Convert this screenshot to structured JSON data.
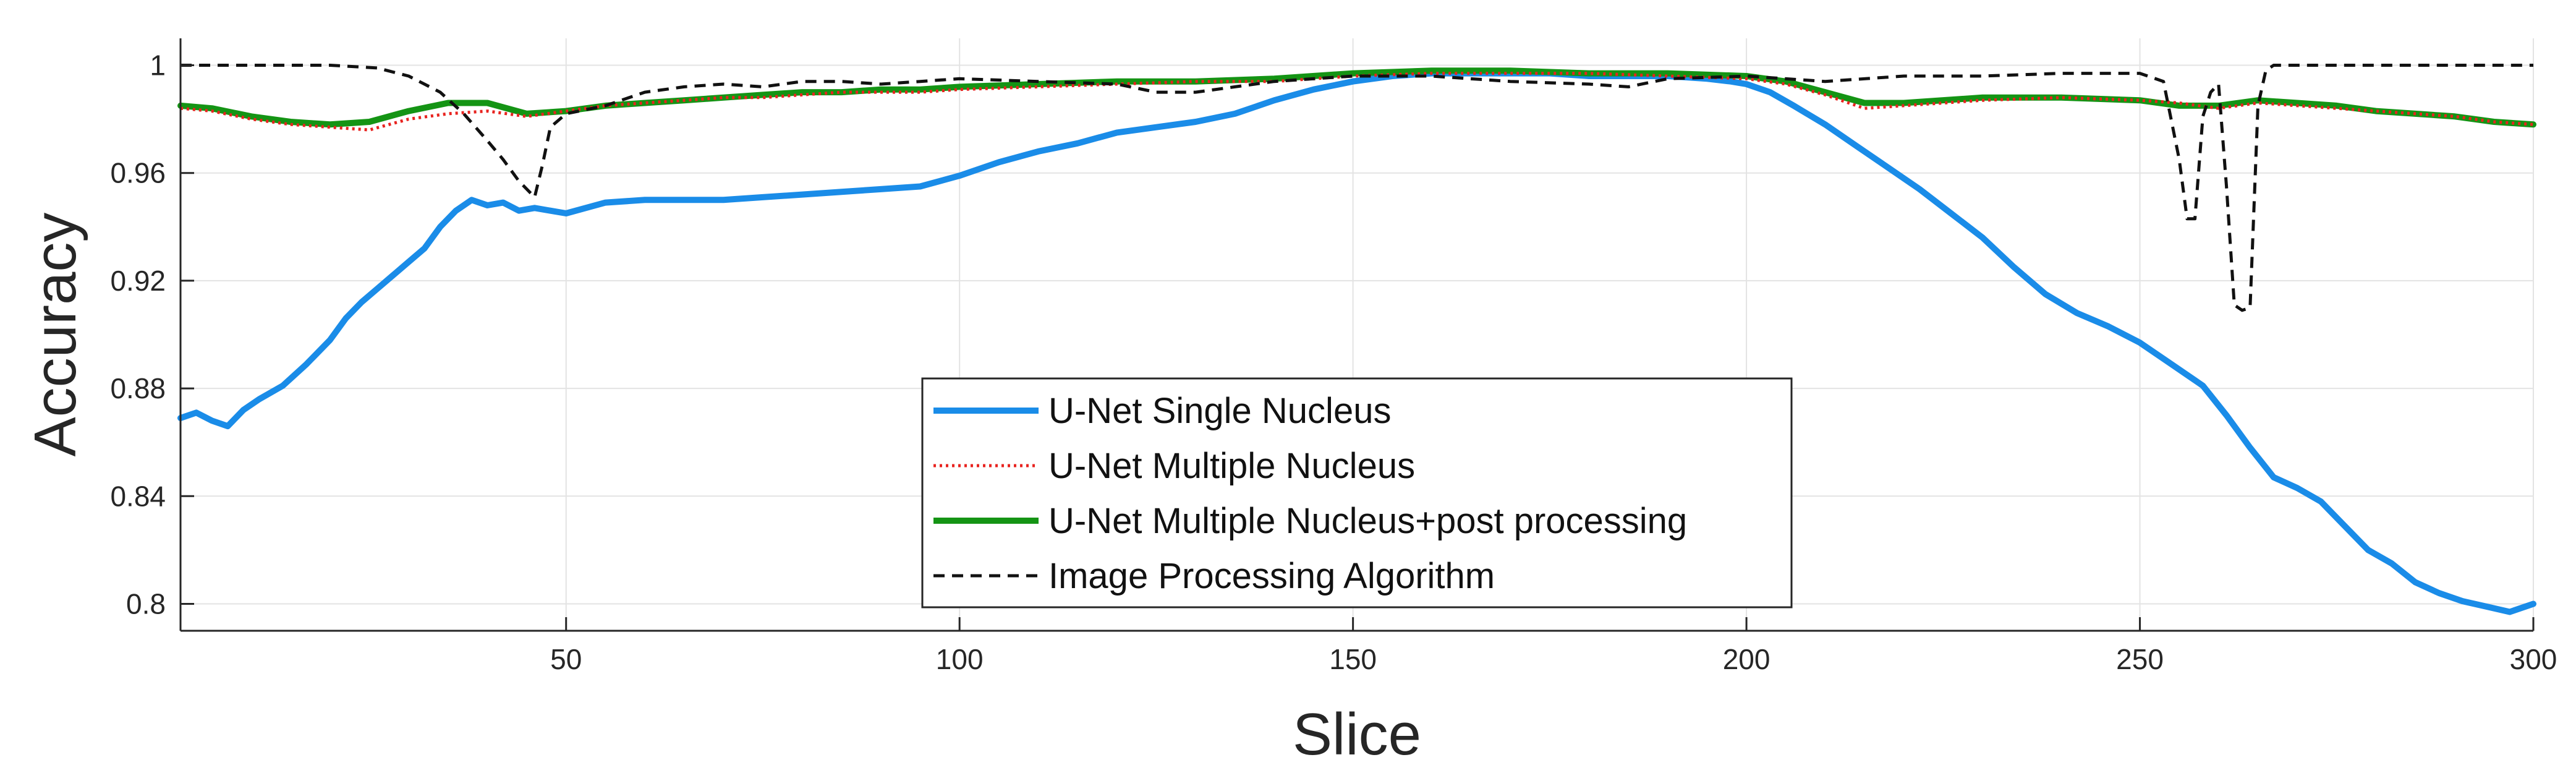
{
  "chart_data": {
    "type": "line",
    "xlabel": "Slice",
    "ylabel": "Accuracy",
    "xlim": [
      1,
      300
    ],
    "ylim": [
      0.79,
      1.01
    ],
    "xticks": [
      50,
      100,
      150,
      200,
      250,
      300
    ],
    "yticks": [
      0.8,
      0.84,
      0.88,
      0.92,
      0.96,
      1
    ],
    "ytick_labels": [
      "0.8",
      "0.84",
      "0.88",
      "0.92",
      "0.96",
      "1"
    ],
    "grid": true,
    "legend_position": "bottom-center",
    "series": [
      {
        "name": "U-Net Single Nucleus",
        "color": "#1a8ce8",
        "style": "solid-thick",
        "points": [
          [
            1,
            0.869
          ],
          [
            3,
            0.871
          ],
          [
            5,
            0.868
          ],
          [
            7,
            0.866
          ],
          [
            9,
            0.872
          ],
          [
            11,
            0.876
          ],
          [
            14,
            0.881
          ],
          [
            17,
            0.889
          ],
          [
            20,
            0.898
          ],
          [
            22,
            0.906
          ],
          [
            24,
            0.912
          ],
          [
            26,
            0.917
          ],
          [
            28,
            0.922
          ],
          [
            30,
            0.927
          ],
          [
            32,
            0.932
          ],
          [
            34,
            0.94
          ],
          [
            36,
            0.946
          ],
          [
            38,
            0.95
          ],
          [
            40,
            0.948
          ],
          [
            42,
            0.949
          ],
          [
            44,
            0.946
          ],
          [
            46,
            0.947
          ],
          [
            48,
            0.946
          ],
          [
            50,
            0.945
          ],
          [
            55,
            0.949
          ],
          [
            60,
            0.95
          ],
          [
            65,
            0.95
          ],
          [
            70,
            0.95
          ],
          [
            75,
            0.951
          ],
          [
            80,
            0.952
          ],
          [
            85,
            0.953
          ],
          [
            90,
            0.954
          ],
          [
            95,
            0.955
          ],
          [
            100,
            0.959
          ],
          [
            105,
            0.964
          ],
          [
            110,
            0.968
          ],
          [
            115,
            0.971
          ],
          [
            120,
            0.975
          ],
          [
            125,
            0.977
          ],
          [
            130,
            0.979
          ],
          [
            135,
            0.982
          ],
          [
            140,
            0.987
          ],
          [
            145,
            0.991
          ],
          [
            150,
            0.994
          ],
          [
            155,
            0.996
          ],
          [
            160,
            0.997
          ],
          [
            165,
            0.997
          ],
          [
            170,
            0.997
          ],
          [
            175,
            0.997
          ],
          [
            180,
            0.996
          ],
          [
            185,
            0.996
          ],
          [
            190,
            0.996
          ],
          [
            195,
            0.995
          ],
          [
            198,
            0.994
          ],
          [
            200,
            0.993
          ],
          [
            203,
            0.99
          ],
          [
            206,
            0.985
          ],
          [
            210,
            0.978
          ],
          [
            214,
            0.97
          ],
          [
            218,
            0.962
          ],
          [
            222,
            0.954
          ],
          [
            226,
            0.945
          ],
          [
            230,
            0.936
          ],
          [
            234,
            0.925
          ],
          [
            238,
            0.915
          ],
          [
            242,
            0.908
          ],
          [
            246,
            0.903
          ],
          [
            250,
            0.897
          ],
          [
            254,
            0.889
          ],
          [
            258,
            0.881
          ],
          [
            261,
            0.87
          ],
          [
            264,
            0.858
          ],
          [
            267,
            0.847
          ],
          [
            270,
            0.843
          ],
          [
            273,
            0.838
          ],
          [
            276,
            0.829
          ],
          [
            279,
            0.82
          ],
          [
            282,
            0.815
          ],
          [
            285,
            0.808
          ],
          [
            288,
            0.804
          ],
          [
            291,
            0.801
          ],
          [
            294,
            0.799
          ],
          [
            297,
            0.797
          ],
          [
            300,
            0.8
          ]
        ]
      },
      {
        "name": "U-Net Multiple Nucleus",
        "color": "#e8231f",
        "style": "dotted",
        "points": [
          [
            1,
            0.984
          ],
          [
            5,
            0.983
          ],
          [
            10,
            0.98
          ],
          [
            15,
            0.978
          ],
          [
            20,
            0.977
          ],
          [
            25,
            0.976
          ],
          [
            30,
            0.98
          ],
          [
            35,
            0.982
          ],
          [
            40,
            0.983
          ],
          [
            45,
            0.981
          ],
          [
            50,
            0.983
          ],
          [
            55,
            0.985
          ],
          [
            60,
            0.986
          ],
          [
            65,
            0.987
          ],
          [
            70,
            0.988
          ],
          [
            75,
            0.988
          ],
          [
            80,
            0.989
          ],
          [
            85,
            0.99
          ],
          [
            90,
            0.99
          ],
          [
            95,
            0.99
          ],
          [
            100,
            0.991
          ],
          [
            110,
            0.992
          ],
          [
            120,
            0.993
          ],
          [
            130,
            0.994
          ],
          [
            140,
            0.994
          ],
          [
            150,
            0.996
          ],
          [
            160,
            0.997
          ],
          [
            170,
            0.997
          ],
          [
            180,
            0.997
          ],
          [
            190,
            0.996
          ],
          [
            200,
            0.995
          ],
          [
            205,
            0.993
          ],
          [
            210,
            0.989
          ],
          [
            215,
            0.984
          ],
          [
            220,
            0.985
          ],
          [
            230,
            0.987
          ],
          [
            240,
            0.988
          ],
          [
            250,
            0.987
          ],
          [
            255,
            0.986
          ],
          [
            260,
            0.984
          ],
          [
            265,
            0.986
          ],
          [
            270,
            0.985
          ],
          [
            275,
            0.984
          ],
          [
            280,
            0.983
          ],
          [
            285,
            0.982
          ],
          [
            290,
            0.981
          ],
          [
            295,
            0.979
          ],
          [
            300,
            0.978
          ]
        ]
      },
      {
        "name": "U-Net Multiple Nucleus+post processing",
        "color": "#149414",
        "style": "solid-thick",
        "points": [
          [
            1,
            0.985
          ],
          [
            5,
            0.984
          ],
          [
            10,
            0.981
          ],
          [
            15,
            0.979
          ],
          [
            20,
            0.978
          ],
          [
            25,
            0.979
          ],
          [
            30,
            0.983
          ],
          [
            35,
            0.986
          ],
          [
            40,
            0.986
          ],
          [
            45,
            0.982
          ],
          [
            50,
            0.983
          ],
          [
            55,
            0.985
          ],
          [
            60,
            0.986
          ],
          [
            65,
            0.987
          ],
          [
            70,
            0.988
          ],
          [
            75,
            0.989
          ],
          [
            80,
            0.99
          ],
          [
            85,
            0.99
          ],
          [
            90,
            0.991
          ],
          [
            95,
            0.991
          ],
          [
            100,
            0.992
          ],
          [
            110,
            0.993
          ],
          [
            120,
            0.994
          ],
          [
            130,
            0.994
          ],
          [
            140,
            0.995
          ],
          [
            150,
            0.997
          ],
          [
            160,
            0.998
          ],
          [
            170,
            0.998
          ],
          [
            180,
            0.997
          ],
          [
            190,
            0.997
          ],
          [
            200,
            0.996
          ],
          [
            205,
            0.994
          ],
          [
            210,
            0.99
          ],
          [
            215,
            0.986
          ],
          [
            220,
            0.986
          ],
          [
            230,
            0.988
          ],
          [
            240,
            0.988
          ],
          [
            250,
            0.987
          ],
          [
            255,
            0.985
          ],
          [
            260,
            0.985
          ],
          [
            265,
            0.987
          ],
          [
            270,
            0.986
          ],
          [
            275,
            0.985
          ],
          [
            280,
            0.983
          ],
          [
            285,
            0.982
          ],
          [
            290,
            0.981
          ],
          [
            295,
            0.979
          ],
          [
            300,
            0.978
          ]
        ]
      },
      {
        "name": "Image Processing Algorithm",
        "color": "#111111",
        "style": "dashed",
        "points": [
          [
            1,
            1.0
          ],
          [
            10,
            1.0
          ],
          [
            20,
            1.0
          ],
          [
            26,
            0.999
          ],
          [
            30,
            0.996
          ],
          [
            34,
            0.99
          ],
          [
            37,
            0.982
          ],
          [
            40,
            0.972
          ],
          [
            42,
            0.965
          ],
          [
            44,
            0.957
          ],
          [
            46,
            0.951
          ],
          [
            47,
            0.963
          ],
          [
            48,
            0.977
          ],
          [
            50,
            0.982
          ],
          [
            55,
            0.985
          ],
          [
            60,
            0.99
          ],
          [
            65,
            0.992
          ],
          [
            70,
            0.993
          ],
          [
            75,
            0.992
          ],
          [
            80,
            0.994
          ],
          [
            85,
            0.994
          ],
          [
            90,
            0.993
          ],
          [
            95,
            0.994
          ],
          [
            100,
            0.995
          ],
          [
            110,
            0.994
          ],
          [
            120,
            0.993
          ],
          [
            125,
            0.99
          ],
          [
            130,
            0.99
          ],
          [
            135,
            0.992
          ],
          [
            140,
            0.994
          ],
          [
            150,
            0.996
          ],
          [
            160,
            0.996
          ],
          [
            170,
            0.994
          ],
          [
            180,
            0.993
          ],
          [
            185,
            0.992
          ],
          [
            190,
            0.995
          ],
          [
            200,
            0.996
          ],
          [
            210,
            0.994
          ],
          [
            220,
            0.996
          ],
          [
            230,
            0.996
          ],
          [
            240,
            0.997
          ],
          [
            250,
            0.997
          ],
          [
            253,
            0.994
          ],
          [
            255,
            0.965
          ],
          [
            256,
            0.943
          ],
          [
            257,
            0.943
          ],
          [
            258,
            0.981
          ],
          [
            259,
            0.99
          ],
          [
            260,
            0.993
          ],
          [
            261,
            0.955
          ],
          [
            262,
            0.911
          ],
          [
            263,
            0.909
          ],
          [
            264,
            0.91
          ],
          [
            265,
            0.985
          ],
          [
            266,
            0.998
          ],
          [
            267,
            1.0
          ],
          [
            280,
            1.0
          ],
          [
            300,
            1.0
          ]
        ]
      }
    ]
  }
}
